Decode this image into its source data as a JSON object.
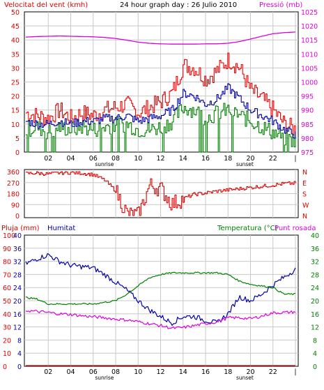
{
  "header": {
    "wind_title": "Velocitat del vent (kmh)",
    "center_title": "24 hour graph day : 26 Julio 2010",
    "pressure_title": "Pressió (mb)"
  },
  "bottom_header": {
    "rain": "Pluja (mm)",
    "humidity": "Humitat",
    "temperature": "Temperatura (°C)",
    "dewpoint": "Punt rosada"
  },
  "x_labels": [
    "02",
    "04",
    "06",
    "08",
    "10",
    "12",
    "14",
    "16",
    "18",
    "20",
    "22"
  ],
  "sunrise_label": "sunrise",
  "sunset_label": "sunset",
  "colors": {
    "gust": "#ee0000",
    "wind_avg": "#008000",
    "pressure": "#dd00dd",
    "direction": "#dd0000",
    "humidity": "#0000aa",
    "temperature": "#008000",
    "dewpoint": "#dd00dd",
    "rain": "#ee0000",
    "grid": "#c8c8c8",
    "left_axis": "#dd0000",
    "right_axis_top": "#dd00dd",
    "direction_axis": "#dd0000",
    "rain_axis": "#dd0000",
    "humidity_axis": "#0000aa",
    "temp_axis": "#008000"
  },
  "chart_data": [
    {
      "type": "line",
      "title": "24 hour graph day : 26 Julio 2010",
      "x": [
        0,
        1,
        2,
        3,
        4,
        5,
        6,
        7,
        8,
        9,
        10,
        11,
        12,
        13,
        14,
        15,
        16,
        17,
        18,
        19,
        20,
        21,
        22,
        23,
        24
      ],
      "ylabel": "Velocitat del vent (kmh)",
      "y2label": "Pressió (mb)",
      "ylim": [
        0,
        50
      ],
      "y_ticks": [
        0,
        5,
        10,
        15,
        20,
        25,
        30,
        35,
        40,
        45,
        50
      ],
      "y2lim": [
        975,
        1025
      ],
      "y2_ticks": [
        975,
        980,
        985,
        990,
        995,
        1000,
        1005,
        1010,
        1015,
        1020,
        1025
      ],
      "series": [
        {
          "key": "gust",
          "axis": "left",
          "values": [
            14,
            13,
            12,
            15,
            12,
            14,
            13,
            15,
            16,
            17,
            14,
            16,
            18,
            21,
            31,
            30,
            26,
            29,
            33,
            30,
            22,
            19,
            15,
            10,
            8
          ]
        },
        {
          "key": "wind_avg",
          "axis": "left",
          "values": [
            8,
            9,
            7,
            9,
            8,
            9,
            8,
            9,
            10,
            10,
            8,
            8,
            9,
            11,
            16,
            15,
            12,
            14,
            15,
            13,
            11,
            9,
            7,
            5,
            4
          ]
        },
        {
          "key": "humid_like",
          "axis": "left",
          "values": [
            11,
            10,
            10,
            11,
            10,
            11,
            11,
            12,
            12,
            13,
            11,
            12,
            13,
            15,
            21,
            20,
            17,
            19,
            23,
            19,
            15,
            13,
            11,
            8,
            6
          ]
        },
        {
          "key": "pressure",
          "axis": "right",
          "values": [
            1016.0,
            1016.2,
            1016.3,
            1016.4,
            1016.3,
            1016.2,
            1016.1,
            1015.9,
            1015.5,
            1014.9,
            1014.2,
            1013.8,
            1013.6,
            1013.5,
            1013.5,
            1013.5,
            1013.6,
            1013.6,
            1013.8,
            1014.4,
            1015.3,
            1016.3,
            1017.2,
            1017.6,
            1017.8
          ]
        }
      ]
    },
    {
      "type": "line",
      "ylim": [
        0,
        360
      ],
      "y_ticks": [
        0,
        90,
        180,
        270,
        360
      ],
      "y2_labels": [
        "N",
        "W",
        "S",
        "E",
        "N"
      ],
      "series": [
        {
          "key": "direction",
          "values": [
            345,
            348,
            340,
            350,
            352,
            348,
            335,
            290,
            200,
            10,
            5,
            250,
            220,
            95,
            140,
            175,
            185,
            200,
            210,
            220,
            230,
            240,
            250,
            262,
            265
          ]
        }
      ]
    },
    {
      "type": "line",
      "y_ticks_rain": [
        0,
        10,
        20,
        30,
        40,
        50,
        60,
        70,
        80,
        90,
        100
      ],
      "y_ticks_humidity": [
        0,
        4,
        8,
        12,
        16,
        20,
        24,
        28,
        32,
        36,
        40
      ],
      "y_ticks_temp": [
        0,
        4,
        8,
        12,
        16,
        20,
        24,
        28,
        32,
        36,
        40
      ],
      "temp_ylim": [
        0,
        40
      ],
      "series": [
        {
          "key": "humidity",
          "axis": "left",
          "unit": "%",
          "values": [
            78,
            82,
            85,
            80,
            77,
            76,
            75,
            70,
            64,
            58,
            50,
            43,
            38,
            33,
            38,
            38,
            35,
            33,
            40,
            53,
            50,
            55,
            62,
            68,
            74
          ]
        },
        {
          "key": "temperature",
          "axis": "right",
          "unit": "°C",
          "values": [
            21,
            20.5,
            19,
            19,
            19,
            19,
            19,
            19.5,
            20,
            22,
            24.5,
            27,
            28,
            28.5,
            28.5,
            28.5,
            28.5,
            28.5,
            28,
            26,
            25,
            24.5,
            24,
            22,
            22
          ]
        },
        {
          "key": "dewpoint",
          "axis": "right",
          "unit": "°C",
          "values": [
            17,
            16.7,
            16.4,
            16,
            15.8,
            15.4,
            15.1,
            14.8,
            14.4,
            14.1,
            13.6,
            13.0,
            12.4,
            11.6,
            11.8,
            12.4,
            13.0,
            13.5,
            14.8,
            14.8,
            14.5,
            15.3,
            16.3,
            16.4,
            16.6
          ]
        },
        {
          "key": "rain",
          "axis": "left",
          "unit": "mm",
          "values": [
            0,
            0,
            0,
            0,
            0,
            0,
            0,
            0,
            0,
            0,
            0,
            0,
            0,
            0,
            0,
            0,
            0,
            0,
            0,
            0,
            0,
            0,
            0,
            0,
            0
          ]
        }
      ]
    }
  ]
}
